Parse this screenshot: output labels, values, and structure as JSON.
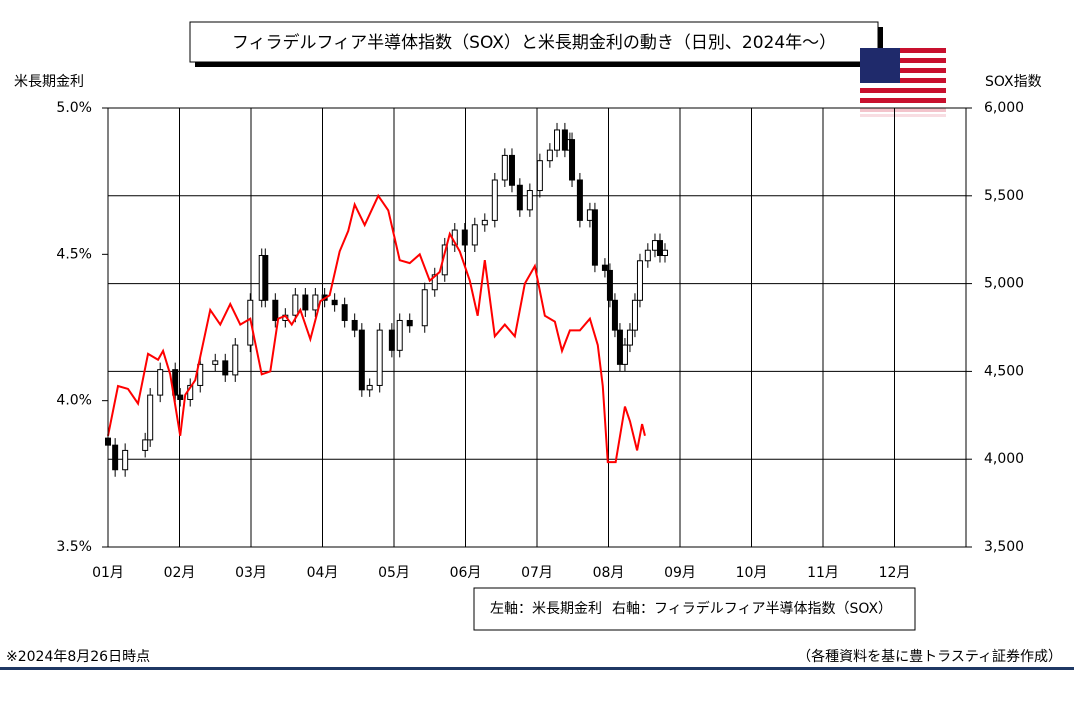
{
  "chart_data": {
    "type": "combo",
    "title": "フィラデルフィア半導体指数（SOX）と米長期金利の動き（日別、2024年～）",
    "y_label": "米長期金利",
    "y2_label": "SOX指数",
    "xlim": [
      1,
      13
    ],
    "xticks": [
      {
        "value": 1,
        "label": "01月"
      },
      {
        "value": 2,
        "label": "02月"
      },
      {
        "value": 3,
        "label": "03月"
      },
      {
        "value": 4,
        "label": "04月"
      },
      {
        "value": 5,
        "label": "05月"
      },
      {
        "value": 6,
        "label": "06月"
      },
      {
        "value": 7,
        "label": "07月"
      },
      {
        "value": 8,
        "label": "08月"
      },
      {
        "value": 9,
        "label": "09月"
      },
      {
        "value": 10,
        "label": "10月"
      },
      {
        "value": 11,
        "label": "11月"
      },
      {
        "value": 12,
        "label": "12月"
      }
    ],
    "ylim": [
      3.5,
      5.0
    ],
    "yticks": [
      {
        "value": 3.5,
        "label": "3.5%"
      },
      {
        "value": 4.0,
        "label": "4.0%"
      },
      {
        "value": 4.5,
        "label": "4.5%"
      },
      {
        "value": 5.0,
        "label": "5.0%"
      }
    ],
    "y2lim": [
      3500,
      6000
    ],
    "y2ticks": [
      {
        "value": 3500,
        "label": "3,500"
      },
      {
        "value": 4000,
        "label": "4,000"
      },
      {
        "value": 4500,
        "label": "4,500"
      },
      {
        "value": 5000,
        "label": "5,000"
      },
      {
        "value": 5500,
        "label": "5,500"
      },
      {
        "value": 6000,
        "label": "6,000"
      }
    ],
    "grid": true,
    "legend_prefixes": [
      "左軸：",
      "右軸："
    ],
    "series": [
      {
        "name": "米長期金利",
        "type": "line",
        "axis": "y",
        "color": "#ff0000",
        "x": [
          1.0,
          1.14,
          1.28,
          1.42,
          1.56,
          1.7,
          1.77,
          1.87,
          2.01,
          2.08,
          2.22,
          2.43,
          2.57,
          2.71,
          2.85,
          2.99,
          3.15,
          3.27,
          3.38,
          3.48,
          3.57,
          3.69,
          3.83,
          3.97,
          4.1,
          4.24,
          4.36,
          4.45,
          4.59,
          4.78,
          4.92,
          5.08,
          5.22,
          5.36,
          5.5,
          5.64,
          5.78,
          5.92,
          6.06,
          6.17,
          6.27,
          6.41,
          6.55,
          6.69,
          6.83,
          6.97,
          7.11,
          7.25,
          7.35,
          7.46,
          7.6,
          7.74,
          7.85,
          7.92,
          7.99,
          8.1,
          8.23,
          8.3,
          8.4,
          8.47,
          8.51
        ],
        "values": [
          3.88,
          4.05,
          4.04,
          3.99,
          4.16,
          4.14,
          4.17,
          4.09,
          3.88,
          4.02,
          4.07,
          4.31,
          4.26,
          4.33,
          4.26,
          4.28,
          4.09,
          4.1,
          4.28,
          4.29,
          4.26,
          4.31,
          4.21,
          4.34,
          4.36,
          4.51,
          4.58,
          4.67,
          4.6,
          4.7,
          4.65,
          4.48,
          4.47,
          4.5,
          4.41,
          4.44,
          4.57,
          4.51,
          4.41,
          4.29,
          4.48,
          4.22,
          4.26,
          4.22,
          4.4,
          4.46,
          4.29,
          4.27,
          4.17,
          4.24,
          4.24,
          4.28,
          4.19,
          4.05,
          3.79,
          3.79,
          3.98,
          3.93,
          3.83,
          3.92,
          3.88
        ]
      },
      {
        "name": "フィラデルフィア半導体指数（SOX）",
        "type": "candlestick",
        "axis": "y2",
        "color": "#000000",
        "x": [
          1.0,
          1.1,
          1.24,
          1.52,
          1.59,
          1.73,
          1.94,
          2.01,
          2.15,
          2.29,
          2.5,
          2.64,
          2.78,
          2.99,
          3.15,
          3.2,
          3.34,
          3.48,
          3.62,
          3.76,
          3.9,
          4.03,
          4.17,
          4.31,
          4.45,
          4.55,
          4.66,
          4.8,
          4.97,
          5.08,
          5.22,
          5.43,
          5.57,
          5.71,
          5.85,
          5.99,
          6.13,
          6.27,
          6.41,
          6.55,
          6.65,
          6.76,
          6.9,
          7.04,
          7.18,
          7.28,
          7.39,
          7.46,
          7.49,
          7.6,
          7.74,
          7.81,
          7.95,
          8.02,
          8.09,
          8.16,
          8.23,
          8.3,
          8.37,
          8.44,
          8.55,
          8.65,
          8.72,
          8.79
        ],
        "open": [
          4120,
          4080,
          3940,
          4050,
          4110,
          4365,
          4510,
          4365,
          4340,
          4420,
          4540,
          4560,
          4480,
          4650,
          4905,
          5160,
          4905,
          4790,
          4820,
          4935,
          4850,
          4935,
          4905,
          4880,
          4790,
          4735,
          4395,
          4420,
          4735,
          4620,
          4790,
          4760,
          4965,
          5050,
          5220,
          5305,
          5220,
          5335,
          5360,
          5590,
          5730,
          5560,
          5420,
          5530,
          5700,
          5760,
          5875,
          5760,
          5820,
          5590,
          5360,
          5420,
          5105,
          5075,
          4905,
          4735,
          4540,
          4650,
          4735,
          4905,
          5130,
          5190,
          5245,
          5160
        ],
        "high": [
          4160,
          4120,
          4090,
          4150,
          4405,
          4550,
          4550,
          4405,
          4460,
          4580,
          4600,
          4600,
          4690,
          4945,
          5200,
          5200,
          4945,
          4860,
          4975,
          4975,
          4975,
          4975,
          4945,
          4920,
          4830,
          4775,
          4460,
          4775,
          4775,
          4830,
          4830,
          5005,
          5090,
          5260,
          5345,
          5345,
          5375,
          5400,
          5630,
          5770,
          5770,
          5600,
          5570,
          5740,
          5800,
          5915,
          5915,
          5860,
          5860,
          5630,
          5460,
          5460,
          5145,
          5115,
          4945,
          4775,
          4690,
          4775,
          4945,
          5170,
          5230,
          5285,
          5285,
          5230
        ],
        "low": [
          4040,
          3900,
          3900,
          4010,
          4070,
          4325,
          4325,
          4300,
          4300,
          4380,
          4500,
          4440,
          4440,
          4610,
          4865,
          4865,
          4750,
          4750,
          4780,
          4810,
          4810,
          4865,
          4840,
          4750,
          4695,
          4355,
          4355,
          4380,
          4580,
          4580,
          4720,
          4720,
          4925,
          5010,
          5180,
          5180,
          5180,
          5295,
          5320,
          5550,
          5520,
          5380,
          5380,
          5490,
          5660,
          5720,
          5720,
          5720,
          5550,
          5320,
          5320,
          5065,
          5035,
          4865,
          4695,
          4500,
          4500,
          4610,
          4695,
          4865,
          5090,
          5150,
          5120,
          5120
        ],
        "close": [
          4080,
          3940,
          4050,
          4110,
          4365,
          4510,
          4365,
          4340,
          4420,
          4540,
          4560,
          4480,
          4650,
          4905,
          5160,
          4905,
          4790,
          4820,
          4935,
          4850,
          4935,
          4905,
          4880,
          4790,
          4735,
          4395,
          4420,
          4735,
          4620,
          4790,
          4760,
          4965,
          5050,
          5220,
          5305,
          5220,
          5335,
          5360,
          5590,
          5730,
          5560,
          5420,
          5530,
          5700,
          5760,
          5875,
          5760,
          5820,
          5590,
          5360,
          5420,
          5105,
          5075,
          4905,
          4735,
          4540,
          4650,
          4735,
          4905,
          5130,
          5190,
          5245,
          5160,
          5190
        ]
      }
    ]
  },
  "footnote": "※2024年8月26日時点",
  "source": "（各種資料を基に豊トラスティ証券作成）"
}
